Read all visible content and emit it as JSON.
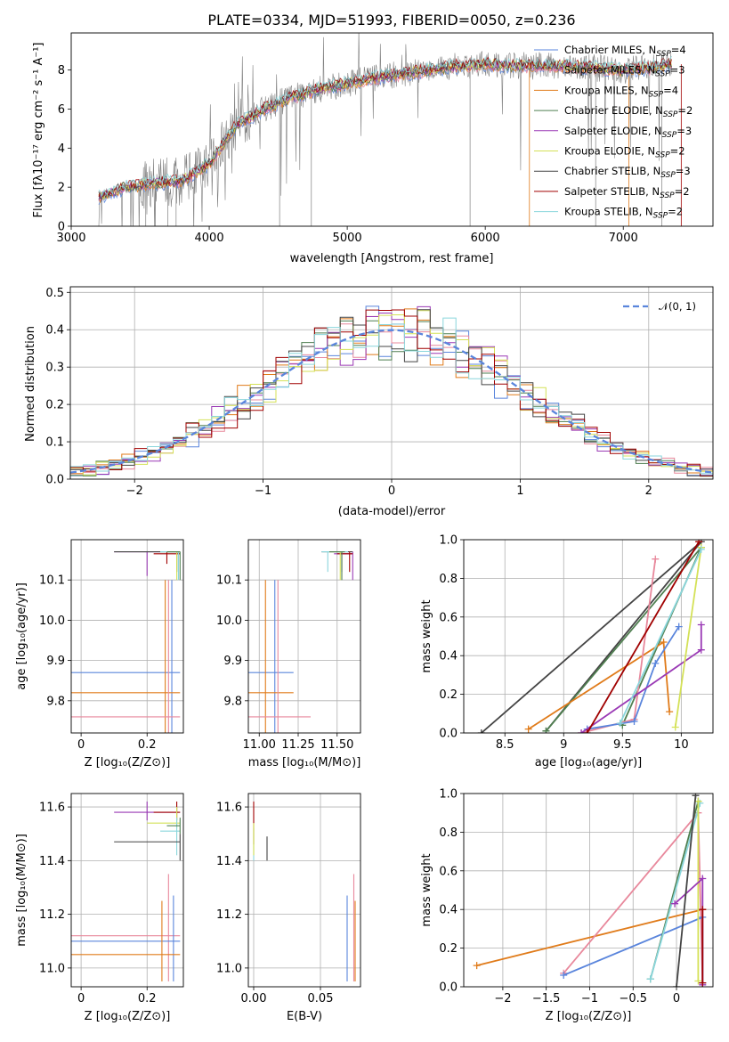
{
  "colors": {
    "chabrier_miles": "#5a85dc",
    "salpeter_miles": "#e8889c",
    "kroupa_miles": "#e07b1a",
    "chabrier_elodie": "#4f7f50",
    "salpeter_elodie": "#9a39b5",
    "kroupa_elodie": "#d4e157",
    "chabrier_stelib": "#444444",
    "salpeter_stelib": "#a00000",
    "kroupa_stelib": "#8ad6dc",
    "data": "#808080",
    "gauss": "#5a85dc"
  },
  "models": [
    {
      "label": "Chabrier MILES, N",
      "sub": "SSP",
      "val": "=4",
      "color": "#5a85dc"
    },
    {
      "label": "Salpeter MILES, N",
      "sub": "SSP",
      "val": "=3",
      "color": "#e8889c"
    },
    {
      "label": "Kroupa MILES, N",
      "sub": "SSP",
      "val": "=4",
      "color": "#e07b1a"
    },
    {
      "label": "Chabrier ELODIE, N",
      "sub": "SSP",
      "val": "=2",
      "color": "#4f7f50"
    },
    {
      "label": "Salpeter ELODIE, N",
      "sub": "SSP",
      "val": "=3",
      "color": "#9a39b5"
    },
    {
      "label": "Kroupa ELODIE, N",
      "sub": "SSP",
      "val": "=2",
      "color": "#d4e157"
    },
    {
      "label": "Chabrier STELIB, N",
      "sub": "SSP",
      "val": "=3",
      "color": "#444444"
    },
    {
      "label": "Salpeter STELIB, N",
      "sub": "SSP",
      "val": "=2",
      "color": "#a00000"
    },
    {
      "label": "Kroupa STELIB, N",
      "sub": "SSP",
      "val": "=2",
      "color": "#8ad6dc"
    }
  ],
  "chart_data": [
    {
      "id": "spectrum",
      "type": "line",
      "title": "PLATE=0334, MJD=51993, FIBERID=0050, z=0.236",
      "xlabel": "wavelength [Angstrom, rest frame]",
      "ylabel": "Flux [fλ10⁻¹⁷ erg cm⁻² s⁻¹ A⁻¹]",
      "xlim": [
        3000,
        7650
      ],
      "ylim": [
        0,
        9.9
      ],
      "xticks": [
        3000,
        4000,
        5000,
        6000,
        7000
      ],
      "yticks": [
        0,
        2,
        4,
        6,
        8
      ],
      "continuum": {
        "x": [
          3200,
          3400,
          3600,
          3800,
          4000,
          4200,
          4400,
          4600,
          4800,
          5000,
          5200,
          5400,
          5600,
          5800,
          6000,
          6200,
          6400,
          6600,
          6800,
          7000,
          7200,
          7350
        ],
        "y": [
          1.5,
          2.0,
          2.2,
          2.3,
          3.2,
          5.2,
          6.0,
          6.6,
          7.0,
          7.3,
          7.6,
          7.8,
          8.0,
          8.2,
          8.3,
          8.2,
          8.2,
          8.2,
          8.1,
          8.0,
          8.1,
          8.3
        ]
      }
    },
    {
      "id": "residuals",
      "type": "line",
      "xlabel": "(data-model)/error",
      "ylabel": "Normed distribution",
      "xlim": [
        -2.5,
        2.5
      ],
      "ylim": [
        0,
        0.515
      ],
      "xticks": [
        -2,
        -1,
        0,
        1,
        2
      ],
      "yticks": [
        0.0,
        0.1,
        0.2,
        0.3,
        0.4,
        0.5
      ],
      "gauss_label": "𝒩(0, 1)"
    },
    {
      "id": "age_vs_Z",
      "type": "scatter",
      "xlabel": "Z [log₁₀(Z/Z⊙)]",
      "ylabel": "age  [log₁₀(age/yr)]",
      "xlim": [
        -0.03,
        0.31
      ],
      "ylim": [
        9.72,
        10.2
      ],
      "xticks": [
        0.0,
        0.2
      ],
      "yticks": [
        9.8,
        9.9,
        10.0,
        10.1
      ]
    },
    {
      "id": "age_vs_mass",
      "type": "scatter",
      "xlabel": "mass [log₁₀(M/M⊙)]",
      "xlim": [
        10.93,
        11.65
      ],
      "ylim": [
        9.72,
        10.2
      ],
      "xticks": [
        11.0,
        11.25,
        11.5
      ],
      "tick_labels_x": [
        "11.00",
        "11.25",
        "11.50"
      ],
      "yticks": [
        9.8,
        9.9,
        10.0,
        10.1
      ]
    },
    {
      "id": "weight_vs_age",
      "type": "line",
      "xlabel": "age  [log₁₀(age/yr)]",
      "ylabel": "mass weight",
      "xlim": [
        8.15,
        10.27
      ],
      "ylim": [
        0,
        1
      ],
      "xticks": [
        8.5,
        9.0,
        9.5,
        10.0
      ],
      "yticks": [
        0.0,
        0.2,
        0.4,
        0.6,
        0.8,
        1.0
      ]
    },
    {
      "id": "mass_vs_Z",
      "type": "scatter",
      "xlabel": "Z [log₁₀(Z/Z⊙)]",
      "ylabel": "mass [log₁₀(M/M⊙)]",
      "xlim": [
        -0.03,
        0.31
      ],
      "ylim": [
        10.93,
        11.65
      ],
      "xticks": [
        0.0,
        0.2
      ],
      "yticks": [
        11.0,
        11.2,
        11.4,
        11.6
      ]
    },
    {
      "id": "mass_vs_ebv",
      "type": "scatter",
      "xlabel": "E(B-V)",
      "xlim": [
        -0.004,
        0.08
      ],
      "ylim": [
        10.93,
        11.65
      ],
      "xticks": [
        0.0,
        0.05
      ],
      "tick_labels_x": [
        "0.00",
        "0.05"
      ],
      "yticks": [
        11.0,
        11.2,
        11.4,
        11.6
      ]
    },
    {
      "id": "weight_vs_Z",
      "type": "line",
      "xlabel": "Z [log₁₀(Z/Z⊙)]",
      "ylabel": "mass weight",
      "xlim": [
        -2.45,
        0.42
      ],
      "ylim": [
        0,
        1
      ],
      "xticks": [
        -2.0,
        -1.5,
        -1.0,
        -0.5,
        0.0
      ],
      "yticks": [
        0.0,
        0.2,
        0.4,
        0.6,
        0.8,
        1.0
      ]
    }
  ]
}
